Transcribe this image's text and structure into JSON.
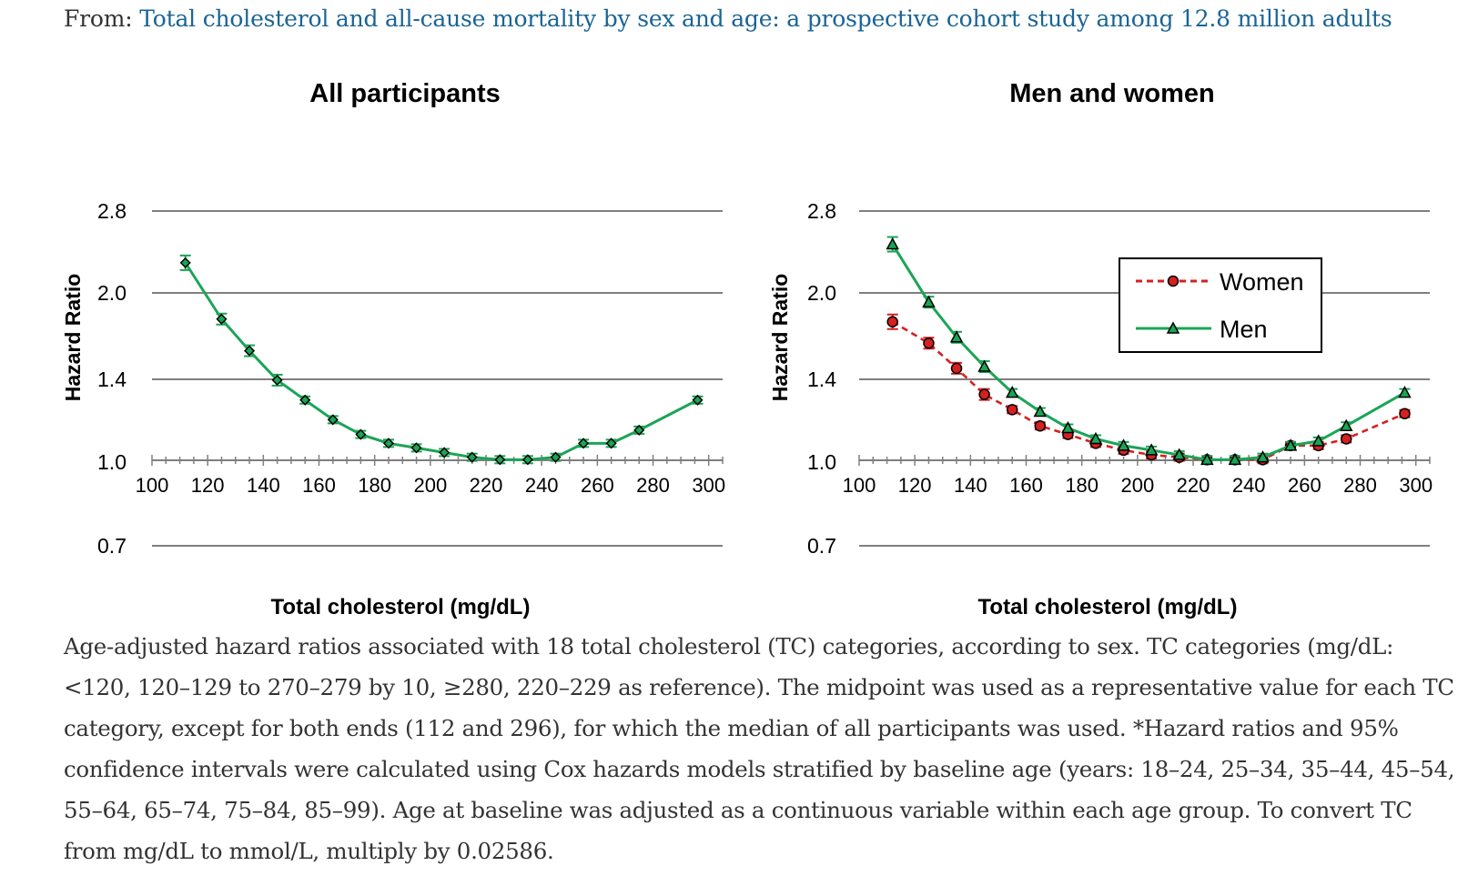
{
  "source": {
    "label": "From:",
    "title": "Total cholesterol and all-cause mortality by sex and age: a prospective cohort study among 12.8 million adults"
  },
  "colors": {
    "green": "#1aa556",
    "red": "#d42020",
    "grid": "#7f7f7f"
  },
  "chart_data": [
    {
      "type": "line",
      "title": "All participants",
      "xlabel": "Total cholesterol (mg/dL)",
      "ylabel": "Hazard Ratio",
      "xlim": [
        100,
        305
      ],
      "ylim": [
        0.7,
        2.8
      ],
      "y_scale": "log",
      "x_ticks": [
        100,
        120,
        140,
        160,
        180,
        200,
        220,
        240,
        260,
        280,
        300
      ],
      "y_ticks": [
        "0.7",
        "1.0",
        "1.4",
        "2.0",
        "2.8"
      ],
      "grid": true,
      "legend": null,
      "series": [
        {
          "color": "#1aa556",
          "marker": "diamond",
          "x": [
            112,
            125,
            135,
            145,
            155,
            165,
            175,
            185,
            195,
            205,
            215,
            225,
            235,
            245,
            255,
            265,
            275,
            296
          ],
          "y": [
            2.26,
            1.79,
            1.57,
            1.39,
            1.28,
            1.18,
            1.11,
            1.07,
            1.05,
            1.03,
            1.01,
            1.0,
            1.0,
            1.01,
            1.07,
            1.07,
            1.13,
            1.28
          ]
        }
      ]
    },
    {
      "type": "line",
      "title": "Men and women",
      "xlabel": "Total cholesterol (mg/dL)",
      "ylabel": "Hazard Ratio",
      "xlim": [
        100,
        305
      ],
      "ylim": [
        0.7,
        2.8
      ],
      "y_scale": "log",
      "x_ticks": [
        100,
        120,
        140,
        160,
        180,
        200,
        220,
        240,
        260,
        280,
        300
      ],
      "y_ticks": [
        "0.7",
        "1.0",
        "1.4",
        "2.0",
        "2.8"
      ],
      "grid": true,
      "legend": "top-right",
      "series": [
        {
          "name": "Women",
          "color": "#d42020",
          "dash": true,
          "marker": "circle",
          "x": [
            112,
            125,
            135,
            145,
            155,
            165,
            175,
            185,
            195,
            205,
            215,
            225,
            235,
            245,
            255,
            265,
            275,
            296
          ],
          "y": [
            1.77,
            1.62,
            1.46,
            1.31,
            1.23,
            1.15,
            1.11,
            1.07,
            1.04,
            1.02,
            1.01,
            1.0,
            1.0,
            1.0,
            1.06,
            1.06,
            1.09,
            1.21
          ]
        },
        {
          "name": "Men",
          "color": "#1aa556",
          "dash": false,
          "marker": "triangle",
          "x": [
            112,
            125,
            135,
            145,
            155,
            165,
            175,
            185,
            195,
            205,
            215,
            225,
            235,
            245,
            255,
            265,
            275,
            296
          ],
          "y": [
            2.44,
            1.92,
            1.66,
            1.47,
            1.32,
            1.22,
            1.14,
            1.09,
            1.06,
            1.04,
            1.02,
            1.0,
            1.0,
            1.01,
            1.06,
            1.08,
            1.15,
            1.32
          ]
        }
      ]
    }
  ],
  "caption": "Age-adjusted hazard ratios associated with 18 total cholesterol (TC) categories, according to sex. TC categories (mg/dL: <120, 120–129 to 270–279 by 10, ≥280, 220–229 as reference). The midpoint was used as a representative value for each TC category, except for both ends (112 and 296), for which the median of all participants was used. *Hazard ratios and 95% confidence intervals were calculated using Cox hazards models stratified by baseline age (years: 18–24, 25–34, 35–44, 45–54, 55–64, 65–74, 75–84, 85–99). Age at baseline was adjusted as a continuous variable within each age group. To convert TC from mg/dL to mmol/L, multiply by 0.02586."
}
